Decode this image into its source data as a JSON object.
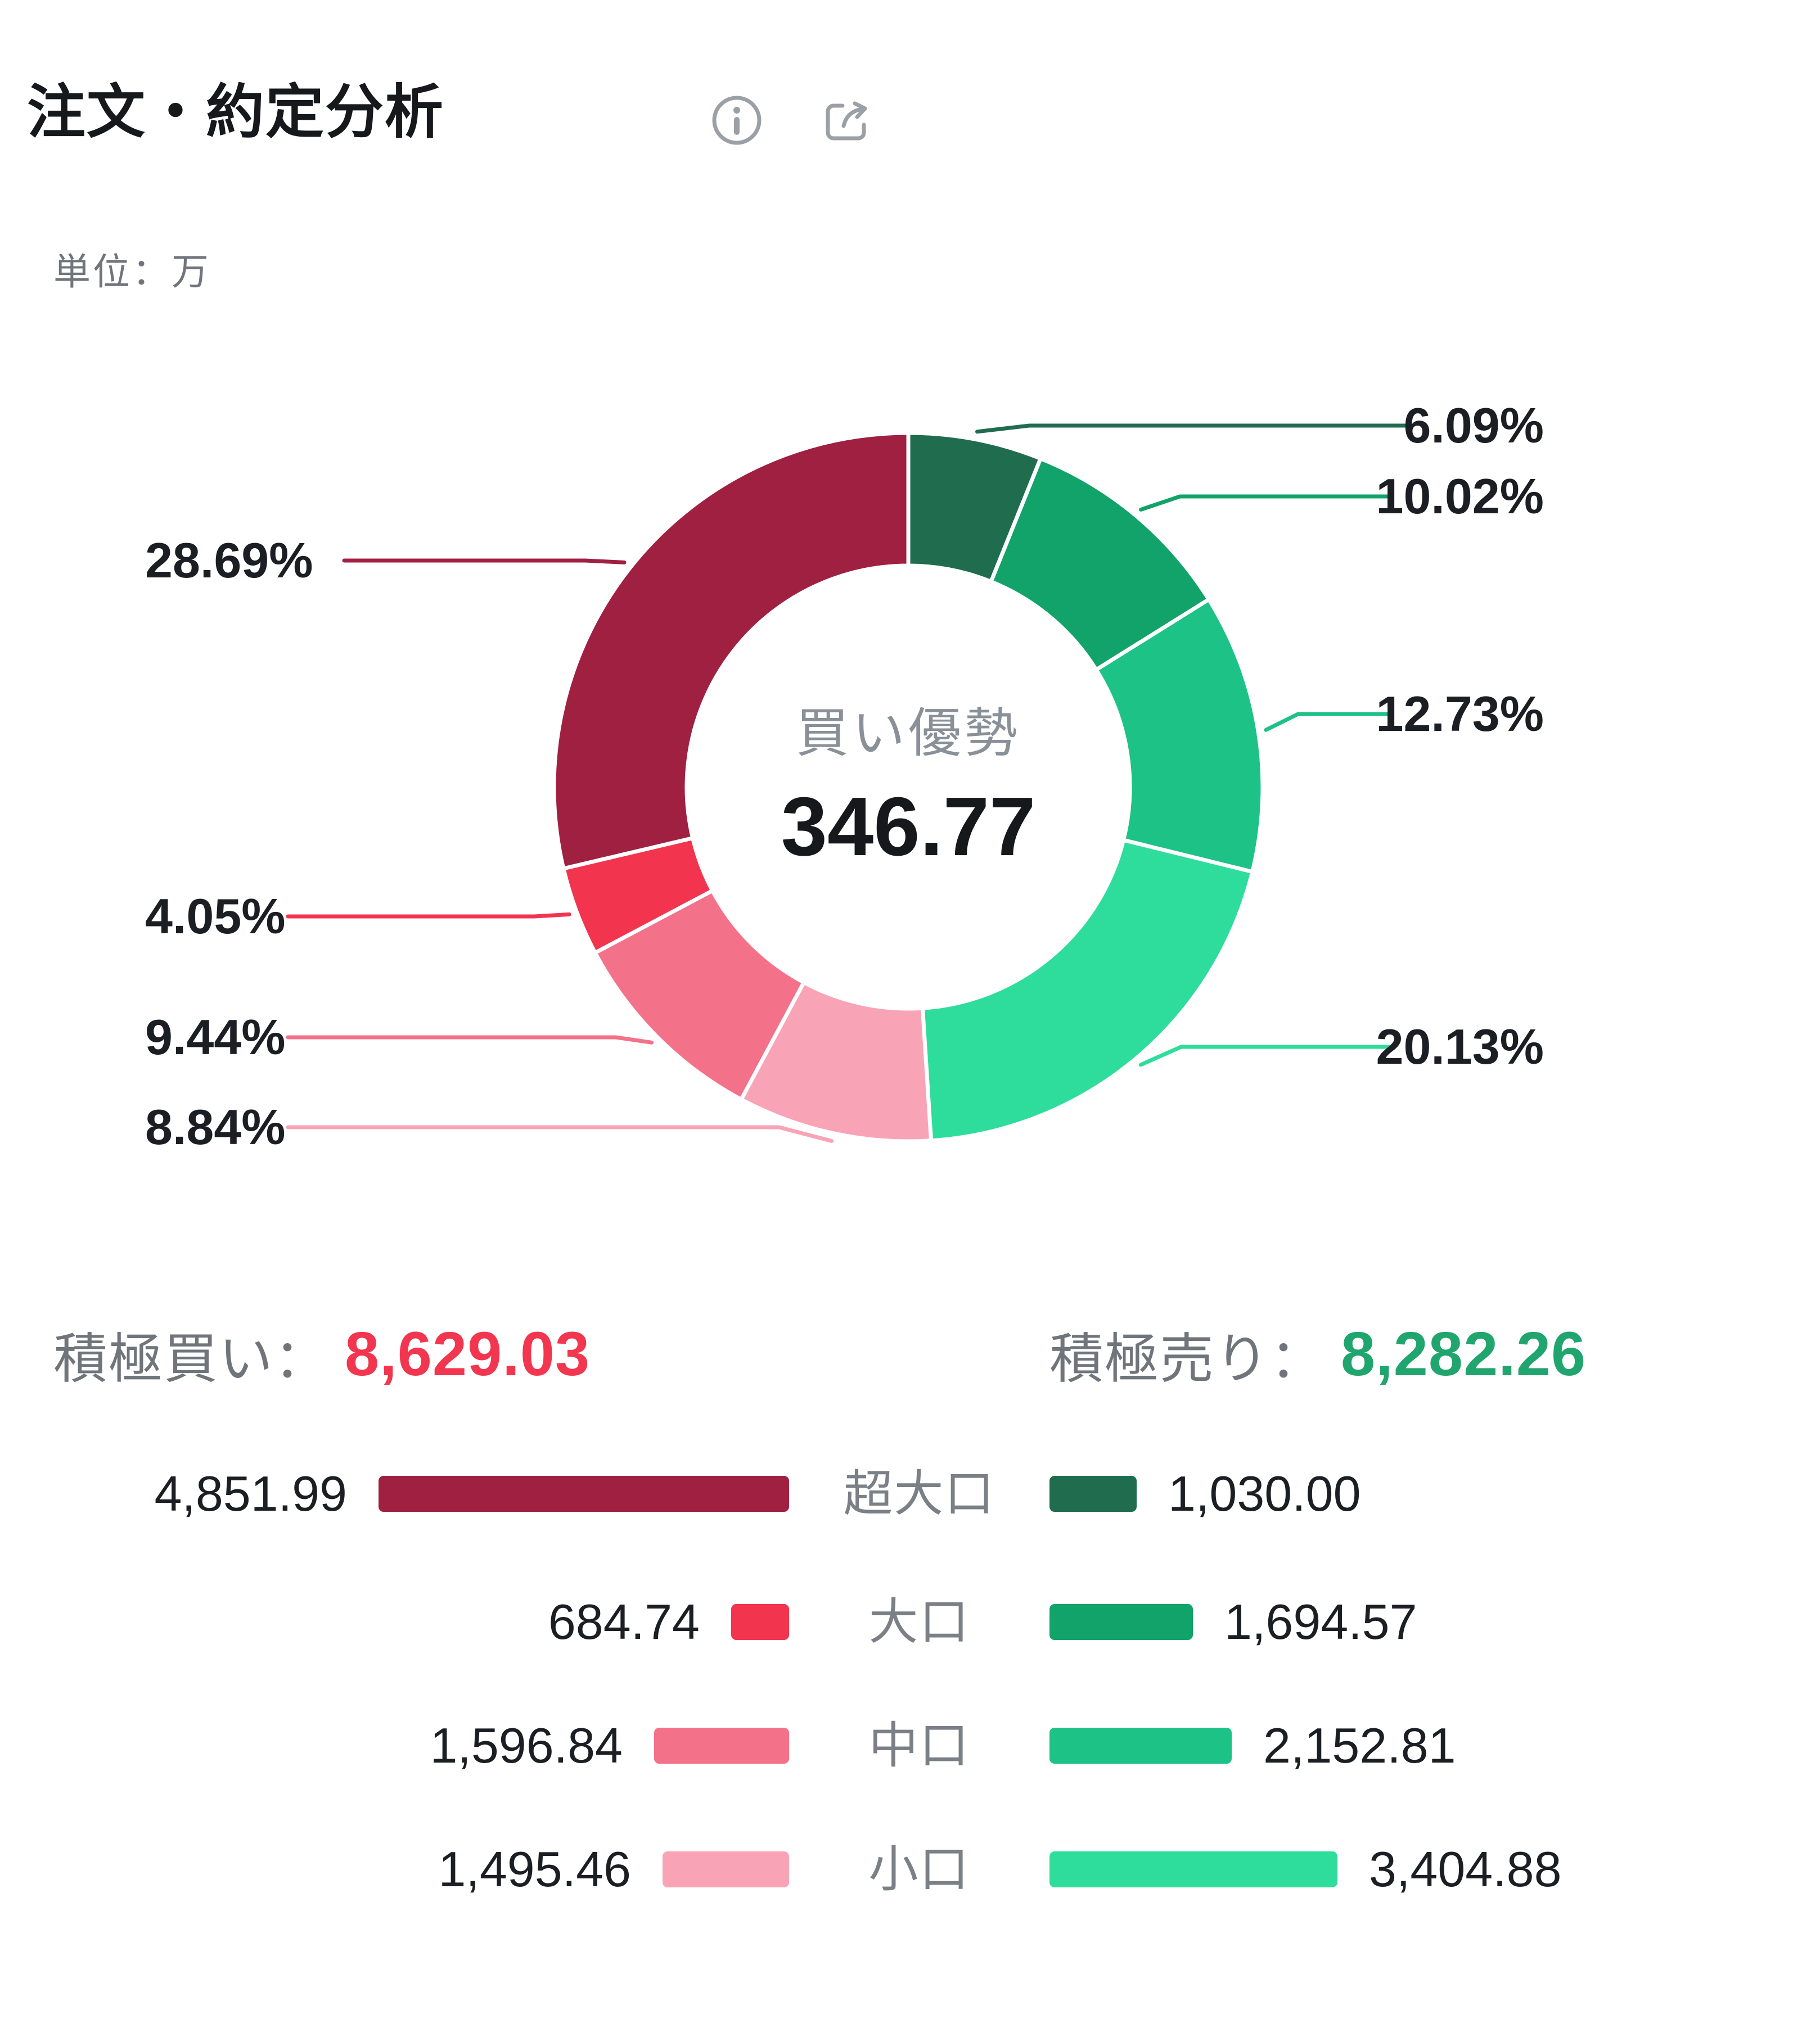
{
  "header": {
    "title": "注文・約定分析",
    "info_icon": "info-icon",
    "share_icon": "share-icon"
  },
  "unit_label": "単位：万",
  "donut": {
    "center_label": "買い優勢",
    "center_value": "346.77"
  },
  "summary": {
    "buy_label": "積極買い：",
    "buy_value": "8,629.03",
    "sell_label": "積極売り：",
    "sell_value": "8,282.26"
  },
  "colors": {
    "buy_accent": "#F2364F",
    "sell_accent": "#21A56E",
    "label_text": "#1B1E23",
    "muted_text": "#70757C"
  },
  "percent_labels": {
    "buy": [
      "28.69%",
      "4.05%",
      "9.44%",
      "8.84%"
    ],
    "sell": [
      "6.09%",
      "10.02%",
      "12.73%",
      "20.13%"
    ]
  },
  "legend": {
    "rows": [
      {
        "buy_value": "4,851.99",
        "category": "超大口",
        "sell_value": "1,030.00"
      },
      {
        "buy_value": "684.74",
        "category": "大口",
        "sell_value": "1,694.57"
      },
      {
        "buy_value": "1,596.84",
        "category": "中口",
        "sell_value": "2,152.81"
      },
      {
        "buy_value": "1,495.46",
        "category": "小口",
        "sell_value": "3,404.88"
      }
    ]
  },
  "chart_data": {
    "type": "pie",
    "subtype": "donut",
    "title": "注文・約定分析",
    "unit": "万",
    "center": {
      "label": "買い優勢",
      "value": 346.77
    },
    "categories": [
      "超大口",
      "大口",
      "中口",
      "小口"
    ],
    "series": [
      {
        "name": "積極買い",
        "total": 8629.03,
        "values": [
          4851.99,
          684.74,
          1596.84,
          1495.46
        ],
        "percents": [
          28.69,
          4.05,
          9.44,
          8.84
        ],
        "colors": [
          "#A02041",
          "#F2344F",
          "#F4718A",
          "#F8A4B6"
        ]
      },
      {
        "name": "積極売り",
        "total": 8282.26,
        "values": [
          1030.0,
          1694.57,
          2152.81,
          3404.88
        ],
        "percents": [
          6.09,
          10.02,
          12.73,
          20.13
        ],
        "colors": [
          "#206C4E",
          "#11A369",
          "#1DC287",
          "#2EDD9C"
        ]
      }
    ],
    "layout_hints": {
      "clockwise_from_top": [
        "sell:超大口",
        "sell:大口",
        "sell:中口",
        "sell:小口",
        "buy:小口",
        "buy:中口",
        "buy:大口",
        "buy:超大口"
      ],
      "labels": "callout leader lines, sell percents right side, buy percents left side",
      "legend_position": "bottom, mirrored bars around category column"
    }
  }
}
